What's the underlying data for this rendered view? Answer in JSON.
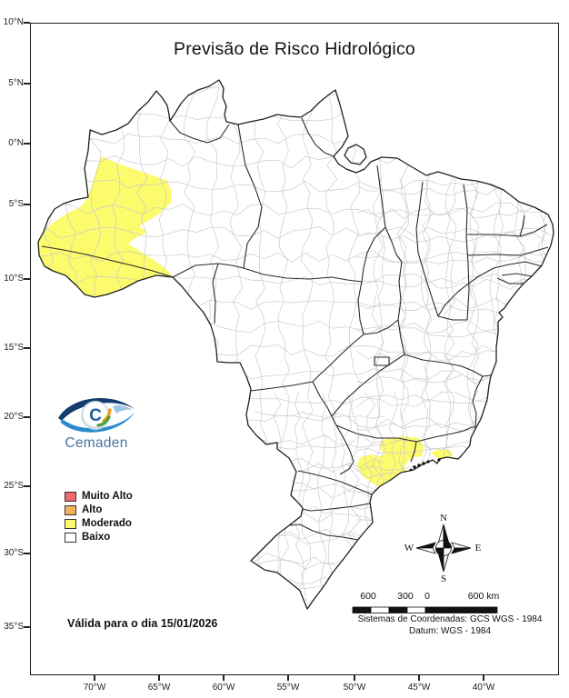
{
  "title": "Previsão de Risco Hidrológico",
  "logo": {
    "text": "Cemaden"
  },
  "map": {
    "axes": {
      "latitude": [
        "10°N",
        "5°N",
        "0°N",
        "5°S",
        "10°S",
        "15°S",
        "20°S",
        "25°S",
        "30°S",
        "35°S"
      ],
      "longitude": [
        "70°W",
        "65°W",
        "60°W",
        "55°W",
        "50°W",
        "45°W",
        "40°W"
      ]
    },
    "risk_regions": [
      {
        "level": "Moderado",
        "color": "#fbfb6b",
        "location": "noroeste (Acre e sudoeste do Amazonas)"
      },
      {
        "level": "Moderado",
        "color": "#fbfb6b",
        "location": "litoral de São Paulo e Rio de Janeiro"
      }
    ]
  },
  "legend": {
    "items": [
      {
        "label": "Muito Alto",
        "color": "#f4696b"
      },
      {
        "label": "Alto",
        "color": "#f2b35c"
      },
      {
        "label": "Moderado",
        "color": "#fbfb6e"
      },
      {
        "label": "Baixo",
        "color": "#ffffff"
      }
    ]
  },
  "validity": "Válida para o dia 15/01/2026",
  "compass": {
    "n": "N",
    "s": "S",
    "e": "E",
    "w": "W"
  },
  "scalebar": {
    "labels": [
      "600",
      "300",
      "0",
      "600 km"
    ]
  },
  "coordinate_system": {
    "line1": "Sistemas de Coordenadas: GCS WGS - 1984",
    "line2": "Datum: WGS - 1984"
  }
}
